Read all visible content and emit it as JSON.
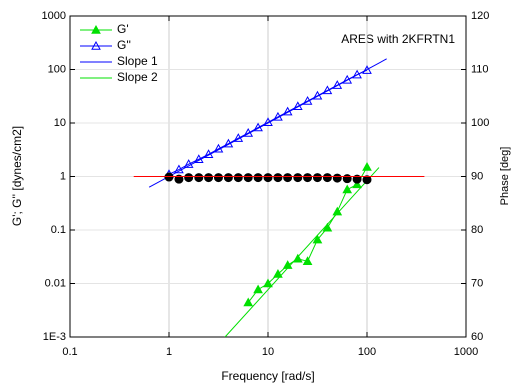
{
  "chart_data": {
    "type": "line",
    "xscale": "log",
    "yscale": "log",
    "xlabel": "Frequency [rad/s]",
    "ylabel": "G'; G'' [dynes/cm2]",
    "y2label": "Phase [deg]",
    "annotation": "ARES with 2KFRTN1",
    "xlim": [
      0.1,
      1000
    ],
    "xticks": [
      0.1,
      1,
      10,
      100,
      1000
    ],
    "ylim": [
      0.001,
      1000
    ],
    "yticks": [
      {
        "value": 0.001,
        "label": "1E-3"
      },
      0.01,
      0.1,
      1,
      10,
      100,
      1000
    ],
    "y2lim": [
      60,
      120
    ],
    "y2ticks": [
      60,
      70,
      80,
      90,
      100,
      110,
      120
    ],
    "grid": true,
    "legend": "top-left",
    "series": [
      {
        "name": "G'",
        "color": "#00e000",
        "marker": "triangle",
        "line": true,
        "x": [
          6.31,
          7.94,
          10,
          12.6,
          15.8,
          20,
          25.1,
          31.6,
          39.8,
          50.1,
          63.1,
          79.4,
          100
        ],
        "values": [
          0.0044,
          0.0077,
          0.01,
          0.015,
          0.022,
          0.029,
          0.026,
          0.066,
          0.11,
          0.22,
          0.57,
          0.71,
          1.5
        ]
      },
      {
        "name": "G''",
        "color": "#0000ff",
        "marker": "triangle-open",
        "line": true,
        "x": [
          1,
          1.26,
          1.58,
          2,
          2.51,
          3.16,
          3.98,
          5.01,
          6.31,
          7.94,
          10,
          12.6,
          15.8,
          20,
          25.1,
          31.6,
          39.8,
          50.1,
          63.1,
          79.4,
          100
        ],
        "values": [
          1.1,
          1.35,
          1.7,
          2.1,
          2.6,
          3.3,
          4.1,
          5.2,
          6.5,
          8.2,
          10.3,
          13,
          16.3,
          20.5,
          25.7,
          32.3,
          40.6,
          51,
          64,
          80,
          97
        ]
      },
      {
        "name": "Slope 1",
        "color": "#0000ff",
        "line": true,
        "x": [
          0.63,
          158
        ],
        "values": [
          0.63,
          158
        ]
      },
      {
        "name": "Slope 2",
        "color": "#00e000",
        "line": true,
        "x": [
          3.68,
          132
        ],
        "values": [
          0.001,
          1.47
        ]
      },
      {
        "color": "#000000",
        "marker": "circle",
        "axis": "y2",
        "x": [
          1,
          1.26,
          1.58,
          2,
          2.51,
          3.16,
          3.98,
          5.01,
          6.31,
          7.94,
          10,
          12.6,
          15.8,
          20,
          25.1,
          31.6,
          39.8,
          50.1,
          63.1,
          79.4,
          100
        ],
        "values": [
          89.9,
          89.5,
          89.8,
          89.8,
          89.8,
          89.8,
          89.8,
          89.8,
          89.8,
          89.8,
          89.8,
          89.8,
          89.8,
          89.8,
          89.8,
          89.8,
          89.8,
          89.7,
          89.6,
          89.5,
          89.4
        ]
      },
      {
        "color": "#ff0000",
        "line": true,
        "axis": "y2",
        "x": [
          0.44,
          380
        ],
        "values": [
          90,
          90
        ]
      }
    ]
  }
}
